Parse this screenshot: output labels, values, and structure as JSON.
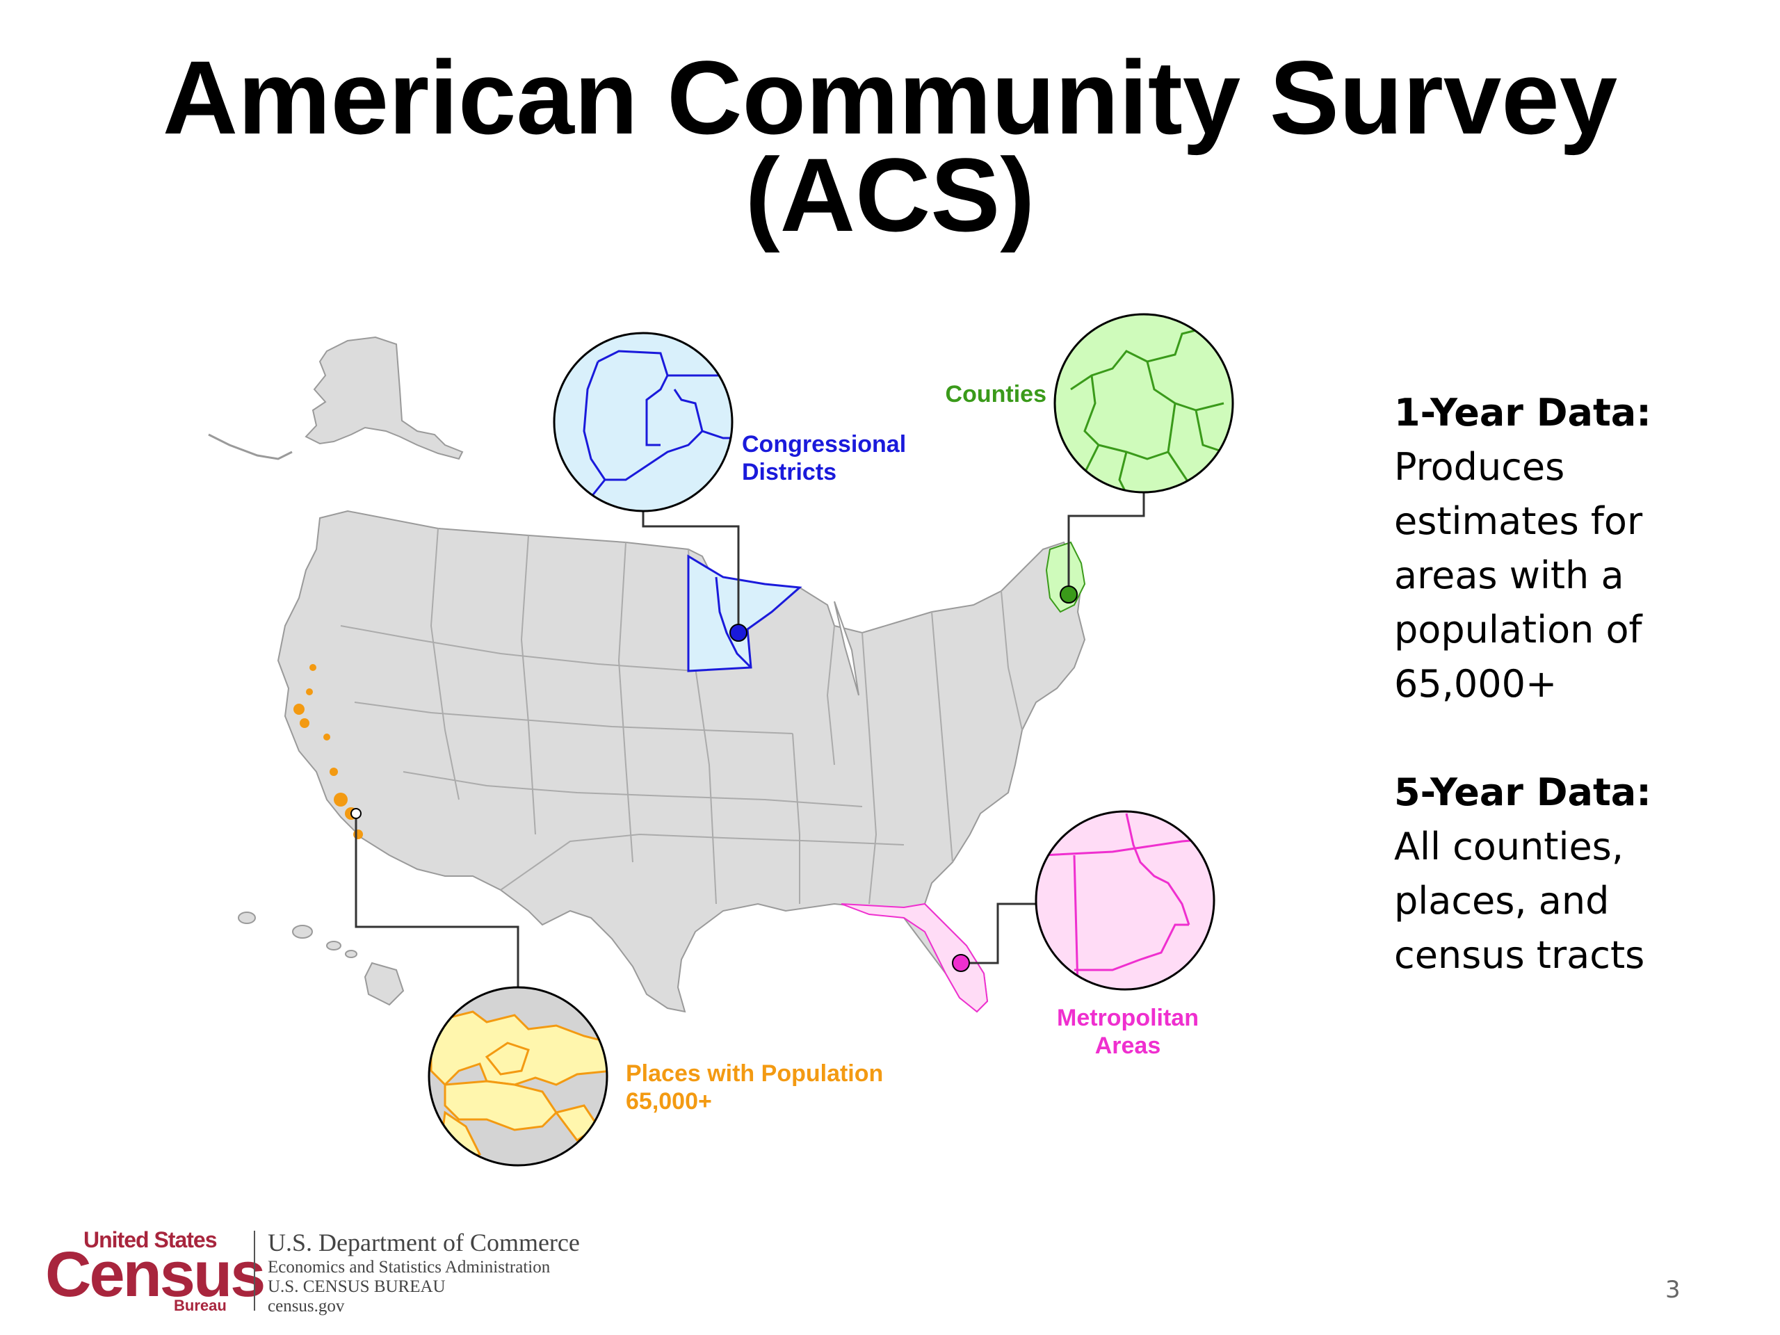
{
  "title": {
    "line1": "American Community Survey",
    "line2": "(ACS)"
  },
  "callouts": {
    "congressional": {
      "label_line1": "Congressional",
      "label_line2": "Districts",
      "color": "#1a1adb",
      "fill": "#d9f0fb"
    },
    "counties": {
      "label": "Counties",
      "color": "#3a9a1a",
      "fill": "#cffbbb"
    },
    "places": {
      "label_line1": "Places with Population",
      "label_line2": "65,000+",
      "color": "#f39a12",
      "fill": "#fff6ad"
    },
    "metropolitan": {
      "label_line1": "Metropolitan",
      "label_line2": "Areas",
      "color": "#ef2fcf",
      "fill": "#ffdcf6"
    }
  },
  "side": {
    "one_year_head": "1-Year Data:",
    "one_year_lines": [
      "Produces",
      "estimates for",
      "areas with a",
      "population of",
      "65,000+"
    ],
    "five_year_head": "5-Year Data:",
    "five_year_lines": [
      "All counties,",
      "places, and",
      "census tracts"
    ]
  },
  "footer": {
    "logo_top": "United States",
    "logo_main": "Census",
    "logo_bottom": "Bureau",
    "dept_line1": "U.S. Department of Commerce",
    "dept_line2": "Economics and Statistics Administration",
    "dept_line3": "U.S. CENSUS BUREAU",
    "dept_line4": "census.gov",
    "brand_color": "#a8253d"
  },
  "page_number": "3",
  "map_colors": {
    "land": "#dcdcdc",
    "border": "#9a9a9a"
  }
}
